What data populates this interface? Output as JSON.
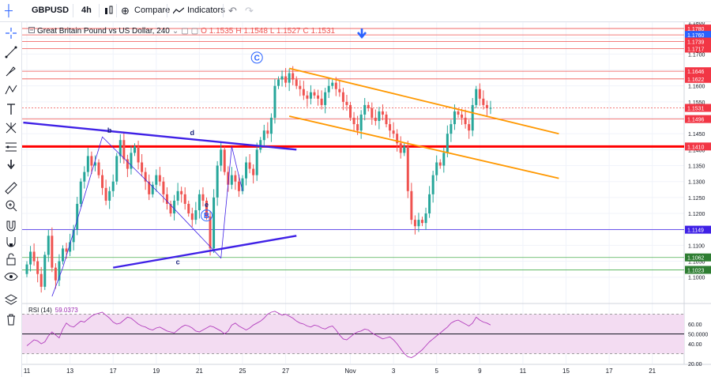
{
  "toolbar": {
    "symbol": "GBPUSD",
    "interval": "4h",
    "compare_label": "Compare",
    "indicators_label": "Indicators"
  },
  "legend": {
    "title": "Great Britain Pound vs US Dollar, 240",
    "open": "O 1.1535",
    "high": "H 1.1548",
    "low": "L 1.1527",
    "close": "C 1.1531"
  },
  "rsi": {
    "label": "RSI (14)",
    "value": "59.0373"
  },
  "colors": {
    "up": "#26a69a",
    "down": "#ef5350",
    "trend": "#3f21e6",
    "channel": "#ff9800",
    "rsi": "#b23dbd"
  },
  "chart_data": {
    "type": "candlestick",
    "ylim": [
      1.092,
      1.18
    ],
    "y_ticks": [
      1.1,
      1.105,
      1.11,
      1.115,
      1.12,
      1.125,
      1.13,
      1.135,
      1.14,
      1.145,
      1.15,
      1.155,
      1.16,
      1.165,
      1.17,
      1.175,
      1.18
    ],
    "x_ticks": [
      {
        "label": "11",
        "i": 0
      },
      {
        "label": "13",
        "i": 12
      },
      {
        "label": "17",
        "i": 24
      },
      {
        "label": "19",
        "i": 36
      },
      {
        "label": "21",
        "i": 48
      },
      {
        "label": "25",
        "i": 60
      },
      {
        "label": "27",
        "i": 72
      },
      {
        "label": "Nov",
        "i": 90
      },
      {
        "label": "3",
        "i": 102
      },
      {
        "label": "5",
        "i": 114
      },
      {
        "label": "9",
        "i": 126
      },
      {
        "label": "11",
        "i": 138
      },
      {
        "label": "15",
        "i": 150
      },
      {
        "label": "17",
        "i": 162
      },
      {
        "label": "21",
        "i": 174
      }
    ],
    "price_levels": [
      {
        "value": 1.178,
        "label": "1.1780",
        "color": "#f23645",
        "line": "#ef5350"
      },
      {
        "value": 1.176,
        "label": "1.1760",
        "color": "#2962ff",
        "line": "#ef5350"
      },
      {
        "value": 1.1739,
        "label": "1.1739",
        "color": "#f23645",
        "line": "#ef5350"
      },
      {
        "value": 1.1717,
        "label": "1.1717",
        "color": "#f23645",
        "line": "#ef5350"
      },
      {
        "value": 1.1646,
        "label": "1.1646",
        "color": "#f23645",
        "line": "#ef5350"
      },
      {
        "value": 1.1622,
        "label": "1.1622",
        "color": "#f23645",
        "line": "#ef5350"
      },
      {
        "value": 1.1531,
        "label": "1.1531",
        "color": "#f23645",
        "line": "#ef5350",
        "dotted": true
      },
      {
        "value": 1.1496,
        "label": "1.1496",
        "color": "#f23645",
        "line": "#ef5350"
      },
      {
        "value": 1.141,
        "label": "1.1410",
        "color": "#f23645",
        "line": "#ff0000",
        "thick": true
      },
      {
        "value": 1.1149,
        "label": "1.1149",
        "color": "#3f21e6",
        "line": "#3f21e6"
      },
      {
        "value": 1.1062,
        "label": "1.1062",
        "color": "#2e7d32",
        "line": "#4caf50"
      },
      {
        "value": 1.1023,
        "label": "1.1023",
        "color": "#2e7d32",
        "line": "#4caf50"
      }
    ],
    "closes": [
      1.104,
      1.108,
      1.105,
      1.101,
      1.097,
      1.107,
      1.113,
      1.103,
      1.099,
      1.105,
      1.109,
      1.108,
      1.111,
      1.115,
      1.123,
      1.13,
      1.133,
      1.138,
      1.135,
      1.136,
      1.132,
      1.128,
      1.124,
      1.127,
      1.13,
      1.138,
      1.143,
      1.137,
      1.134,
      1.139,
      1.141,
      1.136,
      1.133,
      1.13,
      1.126,
      1.129,
      1.132,
      1.13,
      1.126,
      1.123,
      1.12,
      1.124,
      1.127,
      1.126,
      1.123,
      1.12,
      1.118,
      1.121,
      1.126,
      1.124,
      1.119,
      1.109,
      1.125,
      1.135,
      1.14,
      1.133,
      1.129,
      1.132,
      1.13,
      1.127,
      1.131,
      1.136,
      1.134,
      1.132,
      1.14,
      1.143,
      1.146,
      1.145,
      1.15,
      1.16,
      1.162,
      1.163,
      1.161,
      1.164,
      1.162,
      1.16,
      1.159,
      1.157,
      1.156,
      1.158,
      1.157,
      1.156,
      1.154,
      1.158,
      1.16,
      1.161,
      1.159,
      1.158,
      1.155,
      1.154,
      1.15,
      1.148,
      1.146,
      1.151,
      1.154,
      1.153,
      1.15,
      1.149,
      1.152,
      1.151,
      1.148,
      1.146,
      1.145,
      1.142,
      1.139,
      1.141,
      1.127,
      1.118,
      1.116,
      1.118,
      1.117,
      1.12,
      1.126,
      1.132,
      1.136,
      1.135,
      1.139,
      1.145,
      1.148,
      1.152,
      1.151,
      1.15,
      1.148,
      1.146,
      1.154,
      1.159,
      1.156,
      1.154,
      1.153,
      1.1531
    ],
    "rsi_lim": [
      20,
      80
    ],
    "rsi_ticks": [
      20,
      40,
      60
    ],
    "rsi_mid": 50,
    "rsi_label_mid": "50.0000",
    "rsi_values": [
      38,
      41,
      44,
      43,
      40,
      42,
      48,
      52,
      49,
      46,
      55,
      61,
      58,
      57,
      60,
      63,
      62,
      65,
      68,
      70,
      71,
      72,
      69,
      66,
      62,
      60,
      61,
      64,
      67,
      66,
      63,
      60,
      58,
      57,
      55,
      54,
      56,
      57,
      55,
      53,
      52,
      51,
      54,
      57,
      59,
      58,
      56,
      53,
      52,
      54,
      56,
      58,
      57,
      55,
      53,
      50,
      53,
      59,
      61,
      58,
      56,
      54,
      56,
      59,
      61,
      63,
      66,
      70,
      72,
      73,
      71,
      69,
      70,
      68,
      66,
      63,
      61,
      60,
      58,
      57,
      59,
      58,
      56,
      55,
      57,
      58,
      54,
      49,
      45,
      44,
      47,
      50,
      52,
      53,
      55,
      54,
      51,
      49,
      47,
      45,
      46,
      47,
      44,
      40,
      35,
      30,
      27,
      26,
      28,
      31,
      34,
      38,
      42,
      45,
      48,
      51,
      54,
      57,
      61,
      63,
      64,
      62,
      60,
      58,
      61,
      67,
      64,
      62,
      61,
      59.04
    ],
    "annotations": [
      {
        "text": "b",
        "i": 23,
        "value": 1.1453,
        "color": "#1a237e"
      },
      {
        "text": "d",
        "i": 46,
        "value": 1.1445,
        "color": "#1a237e"
      },
      {
        "text": "c",
        "i": 42,
        "value": 1.104,
        "color": "#1a237e"
      },
      {
        "text": "e",
        "i": 50,
        "value": 1.122,
        "color": "#1a237e"
      },
      {
        "text": "B",
        "i": 50,
        "value": 1.1185,
        "color": "#2962ff",
        "circle": true
      },
      {
        "text": "C",
        "i": 64,
        "value": 1.168,
        "color": "#2962ff",
        "circle": true
      }
    ]
  }
}
